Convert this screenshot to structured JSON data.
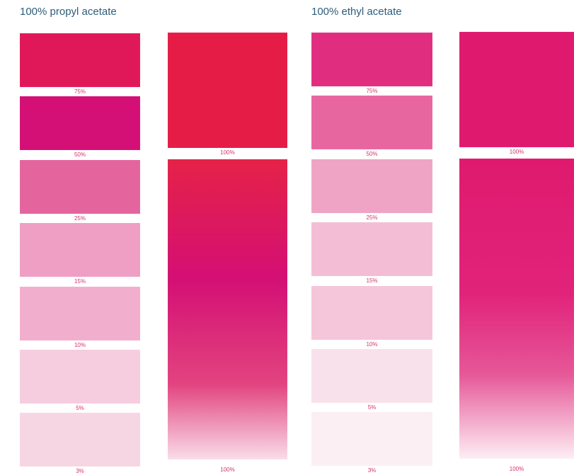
{
  "panels": [
    {
      "title": "100% propyl acetate",
      "swatches": [
        {
          "label": "75%",
          "color": "#e0185a"
        },
        {
          "label": "50%",
          "color": "#d40f75"
        },
        {
          "label": "25%",
          "color": "#e4659e"
        },
        {
          "label": "15%",
          "color": "#ee9fc3"
        },
        {
          "label": "10%",
          "color": "#f2afcd"
        },
        {
          "label": "5%",
          "color": "#f6ccdf"
        },
        {
          "label": "3%",
          "color": "#f7d6e4"
        }
      ],
      "solid_bar": {
        "label": "100%",
        "color": "#e51c46"
      },
      "gradient_bar": {
        "label": "100%",
        "colors": [
          "#e52247",
          "#d40f75",
          "#e2447f",
          "#f9dde8"
        ]
      }
    },
    {
      "title": "100% ethyl acetate",
      "swatches": [
        {
          "label": "75%",
          "color": "#e02d80"
        },
        {
          "label": "50%",
          "color": "#e8669f"
        },
        {
          "label": "25%",
          "color": "#f0a4c5"
        },
        {
          "label": "15%",
          "color": "#f3bdd5"
        },
        {
          "label": "10%",
          "color": "#f5c5da"
        },
        {
          "label": "5%",
          "color": "#f8e1ea"
        },
        {
          "label": "3%",
          "color": "#fbeff4"
        }
      ],
      "solid_bar": {
        "label": "100%",
        "color": "#df1a6e"
      },
      "gradient_bar": {
        "label": "100%",
        "colors": [
          "#df1a6e",
          "#e1237a",
          "#e65898",
          "#fdeef4"
        ]
      }
    }
  ],
  "label_color": "#d6336c",
  "title_color": "#2e5d7a"
}
